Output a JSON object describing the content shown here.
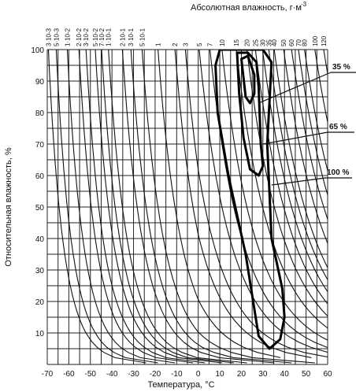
{
  "chart_data": {
    "type": "line",
    "title": "Абсолютная влажность, г·м",
    "title_superscript": "-3",
    "xlabel": "Температура, °C",
    "ylabel": "Относительная влажность, %",
    "xlim": [
      -70,
      60
    ],
    "ylim": [
      0,
      100
    ],
    "x_ticks": [
      "-70",
      "-60",
      "-50",
      "-40",
      "-30",
      "-20",
      "-10",
      "0",
      "10",
      "20",
      "30",
      "40",
      "50",
      "60"
    ],
    "y_ticks": [
      "10",
      "20",
      "30",
      "40",
      "50",
      "60",
      "70",
      "80",
      "90",
      "100"
    ],
    "grid": true,
    "absolute_humidity_labels": [
      "3·10-3",
      "5·10-3",
      "1·10-2",
      "2·10-2",
      "3·10-2",
      "5·10-2",
      "7·10-2",
      "1·10-1",
      "2·10-1",
      "3·10-1",
      "5·10-1",
      "1",
      "2",
      "3",
      "5",
      "7",
      "10",
      "15",
      "20",
      "25",
      "30",
      "35",
      "40",
      "50",
      "60",
      "70",
      "80",
      "100",
      "120"
    ],
    "absolute_humidity_values": [
      0.003,
      0.005,
      0.01,
      0.02,
      0.03,
      0.05,
      0.07,
      0.1,
      0.2,
      0.3,
      0.5,
      1,
      2,
      3,
      5,
      7,
      10,
      15,
      20,
      25,
      30,
      35,
      40,
      50,
      60,
      70,
      80,
      100,
      120
    ],
    "series": [
      {
        "name": "100 %",
        "points": [
          [
            10,
            100
          ],
          [
            30,
            100
          ],
          [
            34,
            96
          ],
          [
            32,
            70
          ],
          [
            34,
            40
          ],
          [
            39,
            24
          ],
          [
            40,
            15
          ],
          [
            38,
            8
          ],
          [
            33,
            5
          ],
          [
            28,
            9
          ],
          [
            22,
            35
          ],
          [
            14,
            60
          ],
          [
            9,
            80
          ],
          [
            8,
            95
          ],
          [
            10,
            100
          ]
        ]
      },
      {
        "name": "65 %",
        "points": [
          [
            18,
            99
          ],
          [
            23,
            99
          ],
          [
            27,
            96
          ],
          [
            28,
            88
          ],
          [
            29,
            70
          ],
          [
            30,
            63
          ],
          [
            28,
            60
          ],
          [
            24,
            62
          ],
          [
            21,
            72
          ],
          [
            19,
            86
          ],
          [
            18,
            99
          ]
        ]
      },
      {
        "name": "35 %",
        "points": [
          [
            20,
            97
          ],
          [
            23,
            98
          ],
          [
            26,
            92
          ],
          [
            26,
            86
          ],
          [
            24,
            83
          ],
          [
            22,
            85
          ],
          [
            21,
            91
          ],
          [
            20,
            97
          ]
        ]
      }
    ],
    "annotations": [
      "35 %",
      "65 %",
      "100 %"
    ]
  }
}
